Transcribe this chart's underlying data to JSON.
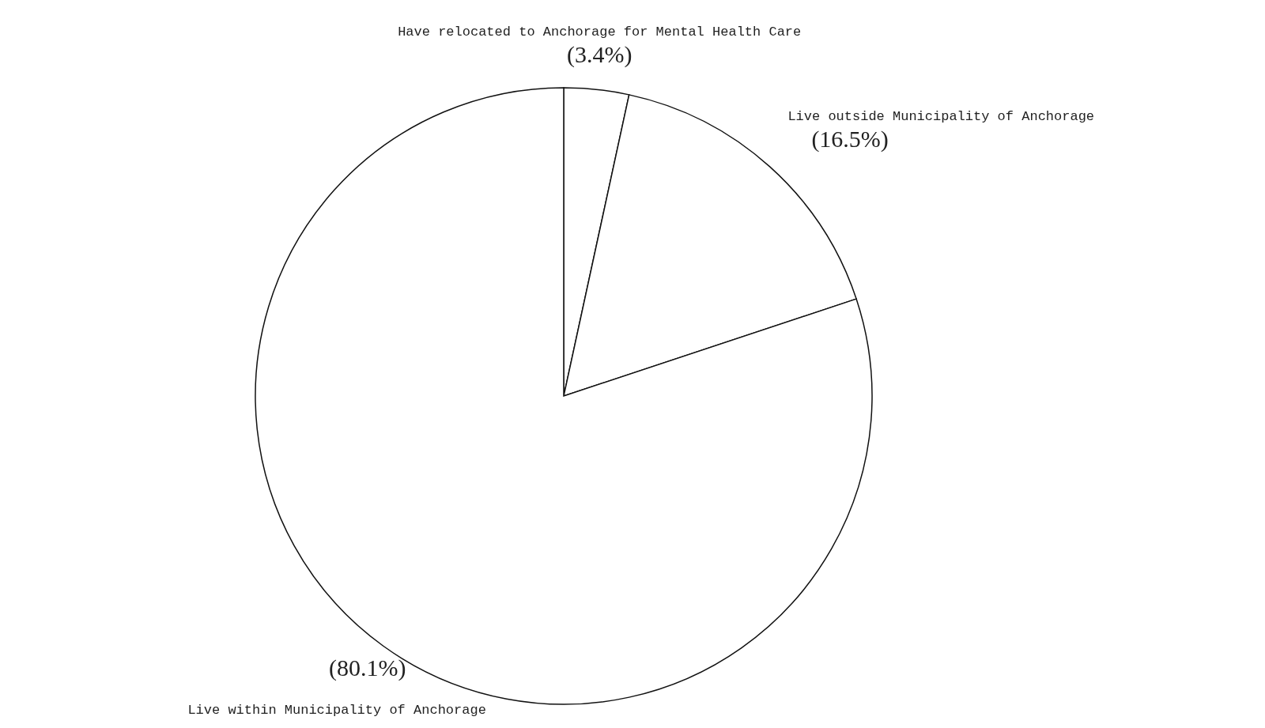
{
  "chart_data": {
    "type": "pie",
    "categories": [
      "Have relocated to Anchorage for Mental Health Care",
      "Live outside Municipality of Anchorage",
      "Live within Municipality of Anchorage"
    ],
    "values": [
      3.4,
      16.5,
      80.1
    ],
    "value_labels": [
      "(3.4%)",
      "(16.5%)",
      "(80.1%)"
    ],
    "colors": [
      "#ffffff",
      "#ffffff",
      "#ffffff"
    ],
    "legend": false
  }
}
